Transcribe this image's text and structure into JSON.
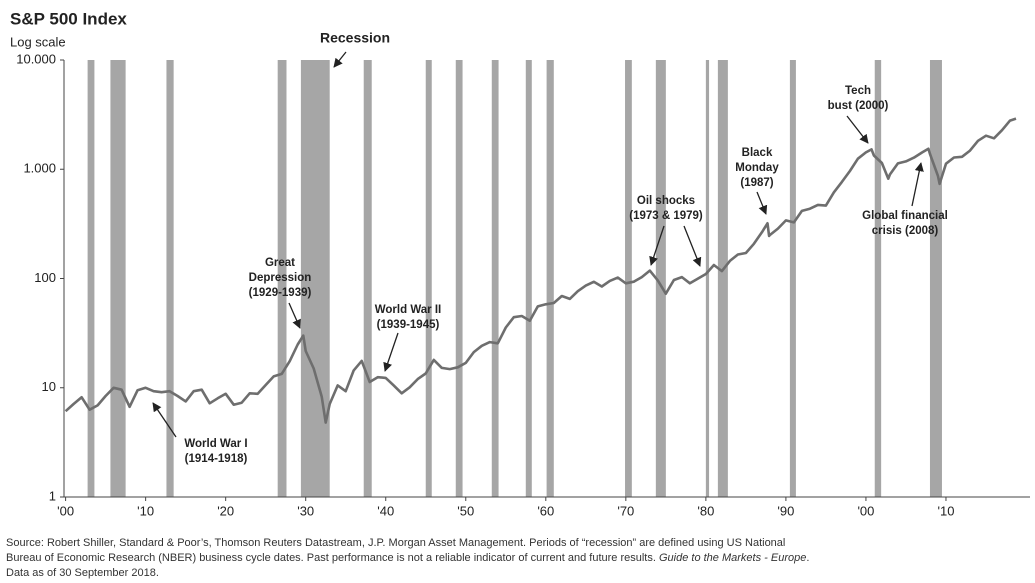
{
  "chart_data": {
    "type": "line",
    "title": "S&P 500 Index",
    "subtitle": "Log scale",
    "log_scale": true,
    "xlim": [
      1899.8,
      2020.5
    ],
    "ylim": [
      1,
      10000
    ],
    "xticks": [
      {
        "value": 1900,
        "label": "'00"
      },
      {
        "value": 1910,
        "label": "'10"
      },
      {
        "value": 1920,
        "label": "'20"
      },
      {
        "value": 1930,
        "label": "'30"
      },
      {
        "value": 1940,
        "label": "'40"
      },
      {
        "value": 1950,
        "label": "'50"
      },
      {
        "value": 1960,
        "label": "'60"
      },
      {
        "value": 1970,
        "label": "'70"
      },
      {
        "value": 1980,
        "label": "'80"
      },
      {
        "value": 1990,
        "label": "'90"
      },
      {
        "value": 2000,
        "label": "'00"
      },
      {
        "value": 2010,
        "label": "'10"
      }
    ],
    "yticks": [
      {
        "value": 10000,
        "label": "10.000"
      },
      {
        "value": 1000,
        "label": "1.000"
      },
      100,
      10,
      1
    ],
    "recession_color": "#a6a6a6",
    "recessions": [
      [
        1902.75,
        1903.6
      ],
      [
        1905.6,
        1907.5
      ],
      [
        1912.6,
        1913.5
      ],
      [
        1926.5,
        1927.6
      ],
      [
        1929.4,
        1933.0
      ],
      [
        1937.25,
        1938.25
      ],
      [
        1945.0,
        1945.75
      ],
      [
        1948.75,
        1949.6
      ],
      [
        1953.25,
        1954.1
      ],
      [
        1957.5,
        1958.25
      ],
      [
        1960.1,
        1961.0
      ],
      [
        1969.9,
        1970.75
      ],
      [
        1973.75,
        1975.0
      ],
      [
        1980.0,
        1980.4
      ],
      [
        1981.5,
        1982.75
      ],
      [
        1990.5,
        1991.25
      ],
      [
        2001.1,
        2001.9
      ],
      [
        2008.0,
        2009.5
      ]
    ],
    "series": [
      {
        "color": "#6e6e6e",
        "x": [
          1900,
          1901,
          1902,
          1903,
          1904,
          1905,
          1906,
          1907,
          1908,
          1909,
          1910,
          1911,
          1912,
          1913,
          1914,
          1915,
          1916,
          1917,
          1918,
          1919,
          1920,
          1921,
          1922,
          1923,
          1924,
          1925,
          1926,
          1927,
          1928,
          1929,
          1929.7,
          1930,
          1931,
          1932,
          1932.5,
          1933,
          1934,
          1935,
          1936,
          1937,
          1938,
          1939,
          1940,
          1941,
          1942,
          1943,
          1944,
          1945,
          1946,
          1947,
          1948,
          1949,
          1950,
          1951,
          1952,
          1953,
          1954,
          1955,
          1956,
          1957,
          1958,
          1959,
          1960,
          1961,
          1962,
          1963,
          1964,
          1965,
          1966,
          1967,
          1968,
          1969,
          1970,
          1971,
          1972,
          1973,
          1974,
          1975,
          1976,
          1977,
          1978,
          1979,
          1980,
          1981,
          1982,
          1983,
          1984,
          1985,
          1986,
          1987,
          1987.7,
          1987.9,
          1988,
          1989,
          1990,
          1991,
          1992,
          1993,
          1994,
          1995,
          1996,
          1997,
          1998,
          1999,
          2000,
          2000.7,
          2001,
          2002,
          2002.8,
          2003,
          2004,
          2005,
          2006,
          2007,
          2007.8,
          2008,
          2009,
          2009.2,
          2010,
          2011,
          2012,
          2013,
          2014,
          2015,
          2016,
          2017,
          2018,
          2018.75
        ],
        "values": [
          6.1,
          7.1,
          8.2,
          6.3,
          6.9,
          8.4,
          10,
          9.6,
          6.7,
          9.5,
          10,
          9.3,
          9.1,
          9.3,
          8.4,
          7.5,
          9.3,
          9.6,
          7.2,
          8.0,
          8.8,
          7.0,
          7.3,
          8.9,
          8.8,
          10.6,
          12.7,
          13.4,
          17.5,
          24.9,
          30,
          21.7,
          15.0,
          8.3,
          4.8,
          7.1,
          10.5,
          9.3,
          14.4,
          17.6,
          11.3,
          12.5,
          12.3,
          10.5,
          8.9,
          10.1,
          12.0,
          13.5,
          18.0,
          15.2,
          14.8,
          15.4,
          16.9,
          21.2,
          24.2,
          26.2,
          25.5,
          35.6,
          44.2,
          45.4,
          41.1,
          55.6,
          58.0,
          59.7,
          69.1,
          65.1,
          76.5,
          86.1,
          93.3,
          84.5,
          95.0,
          102,
          90.3,
          93.5,
          103,
          118,
          96.1,
          72.6,
          96.9,
          103,
          90.3,
          99.7,
          110,
          133,
          117,
          145,
          166,
          171,
          208,
          265,
          320,
          245,
          250,
          286,
          340,
          326,
          416,
          435,
          472,
          465,
          615,
          766,
          964,
          1248,
          1425,
          1520,
          1335,
          1140,
          820,
          895,
          1132,
          1181,
          1278,
          1424,
          1540,
          1379,
          866,
          735,
          1123,
          1282,
          1300,
          1480,
          1822,
          2028,
          1918,
          2275,
          2790,
          2910
        ]
      }
    ],
    "annotations": [
      [
        "Recession"
      ],
      [
        "Great",
        "Depression",
        "(1929-1939)"
      ],
      [
        "World War II",
        "(1939-1945)"
      ],
      [
        "World War I",
        "(1914-1918)"
      ],
      [
        "Oil shocks",
        "(1973 & 1979)"
      ],
      [
        "Black",
        "Monday",
        "(1987)"
      ],
      [
        "Tech",
        "bust (2000)"
      ],
      [
        "Global financial",
        "crisis (2008)"
      ]
    ],
    "footnote": [
      "Source: Robert Shiller, Standard & Poor’s, Thomson Reuters Datastream, J.P. Morgan Asset Management. Periods of “recession” are defined using US National",
      "Bureau of Economic Research (NBER) business cycle dates. Past performance is not a reliable indicator of current and future results. ",
      "Guide to the Markets - Europe",
      ".",
      "Data as of 30 September 2018."
    ]
  }
}
